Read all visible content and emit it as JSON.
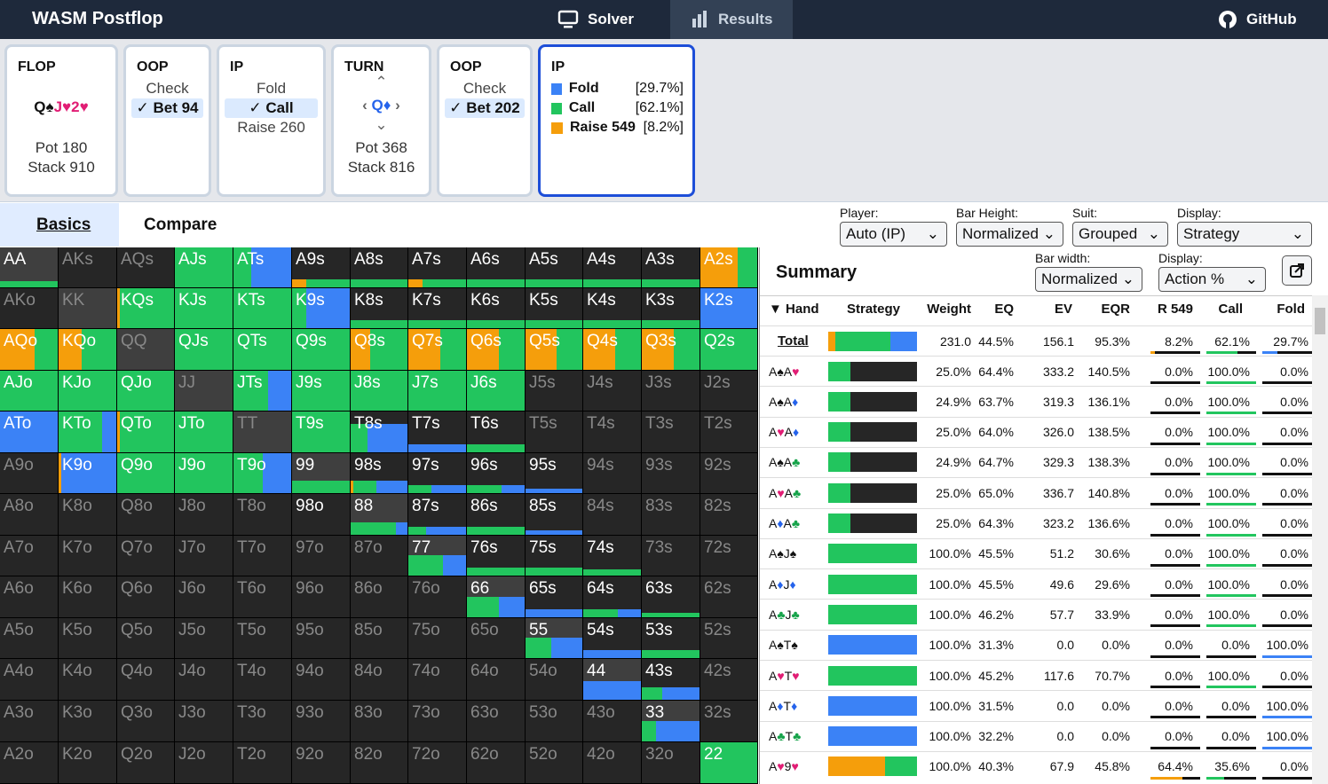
{
  "app": {
    "title": "WASM Postflop",
    "nav_solver": "Solver",
    "nav_results": "Results",
    "nav_github": "GitHub"
  },
  "nodes": {
    "flop": {
      "title": "FLOP",
      "pot": "Pot 180",
      "stack": "Stack 910"
    },
    "oop1": {
      "title": "OOP",
      "a1": "Check",
      "a2": "✓ Bet 94"
    },
    "ip1": {
      "title": "IP",
      "a1": "Fold",
      "a2": "✓ Call",
      "a3": "Raise 260"
    },
    "turn": {
      "title": "TURN",
      "pot": "Pot 368",
      "stack": "Stack 816"
    },
    "oop2": {
      "title": "OOP",
      "a1": "Check",
      "a2": "✓ Bet 202"
    },
    "ip2": {
      "title": "IP",
      "items": [
        {
          "name": "Fold",
          "pct": "[29.7%]"
        },
        {
          "name": "Call",
          "pct": "[62.1%]"
        },
        {
          "name": "Raise 549",
          "pct": "[8.2%]"
        }
      ]
    }
  },
  "tabs": {
    "basics": "Basics",
    "compare": "Compare"
  },
  "controls": {
    "player_label": "Player:",
    "player": "Auto (IP)",
    "barh_label": "Bar Height:",
    "barh": "Normalized",
    "suit_label": "Suit:",
    "suit": "Grouped",
    "display_label": "Display:",
    "display": "Strategy",
    "barw_label": "Bar width:",
    "barw": "Normalized",
    "display2_label": "Display:",
    "display2": "Action %"
  },
  "summary": {
    "title": "Summary",
    "headers": {
      "hand": "▼ Hand",
      "strategy": "Strategy",
      "weight": "Weight",
      "eq": "EQ",
      "ev": "EV",
      "eqr": "EQR",
      "r549": "R 549",
      "call": "Call",
      "fold": "Fold"
    },
    "total": {
      "hand": "Total",
      "weight": "231.0",
      "eq": "44.5%",
      "ev": "156.1",
      "eqr": "95.3%",
      "r549": "8.2%",
      "call": "62.1%",
      "fold": "29.7%",
      "strat": [
        8.2,
        62.1,
        29.7
      ]
    },
    "rows": [
      {
        "r1": "A",
        "s1": "♠",
        "r2": "A",
        "s2": "♥",
        "weight": "25.0%",
        "eq": "64.4%",
        "ev": "333.2",
        "eqr": "140.5%",
        "r549": "0.0%",
        "call": "100.0%",
        "fold": "0.0%",
        "strat": [
          0,
          100,
          0
        ],
        "w": 25
      },
      {
        "r1": "A",
        "s1": "♠",
        "r2": "A",
        "s2": "♦",
        "weight": "24.9%",
        "eq": "63.7%",
        "ev": "319.3",
        "eqr": "136.1%",
        "r549": "0.0%",
        "call": "100.0%",
        "fold": "0.0%",
        "strat": [
          0,
          100,
          0
        ],
        "w": 25
      },
      {
        "r1": "A",
        "s1": "♥",
        "r2": "A",
        "s2": "♦",
        "weight": "25.0%",
        "eq": "64.0%",
        "ev": "326.0",
        "eqr": "138.5%",
        "r549": "0.0%",
        "call": "100.0%",
        "fold": "0.0%",
        "strat": [
          0,
          100,
          0
        ],
        "w": 25
      },
      {
        "r1": "A",
        "s1": "♠",
        "r2": "A",
        "s2": "♣",
        "weight": "24.9%",
        "eq": "64.7%",
        "ev": "329.3",
        "eqr": "138.3%",
        "r549": "0.0%",
        "call": "100.0%",
        "fold": "0.0%",
        "strat": [
          0,
          100,
          0
        ],
        "w": 25
      },
      {
        "r1": "A",
        "s1": "♥",
        "r2": "A",
        "s2": "♣",
        "weight": "25.0%",
        "eq": "65.0%",
        "ev": "336.7",
        "eqr": "140.8%",
        "r549": "0.0%",
        "call": "100.0%",
        "fold": "0.0%",
        "strat": [
          0,
          100,
          0
        ],
        "w": 25
      },
      {
        "r1": "A",
        "s1": "♦",
        "r2": "A",
        "s2": "♣",
        "weight": "25.0%",
        "eq": "64.3%",
        "ev": "323.2",
        "eqr": "136.6%",
        "r549": "0.0%",
        "call": "100.0%",
        "fold": "0.0%",
        "strat": [
          0,
          100,
          0
        ],
        "w": 25
      },
      {
        "r1": "A",
        "s1": "♠",
        "r2": "J",
        "s2": "♠",
        "weight": "100.0%",
        "eq": "45.5%",
        "ev": "51.2",
        "eqr": "30.6%",
        "r549": "0.0%",
        "call": "100.0%",
        "fold": "0.0%",
        "strat": [
          0,
          100,
          0
        ],
        "w": 100
      },
      {
        "r1": "A",
        "s1": "♦",
        "r2": "J",
        "s2": "♦",
        "weight": "100.0%",
        "eq": "45.5%",
        "ev": "49.6",
        "eqr": "29.6%",
        "r549": "0.0%",
        "call": "100.0%",
        "fold": "0.0%",
        "strat": [
          0,
          100,
          0
        ],
        "w": 100
      },
      {
        "r1": "A",
        "s1": "♣",
        "r2": "J",
        "s2": "♣",
        "weight": "100.0%",
        "eq": "46.2%",
        "ev": "57.7",
        "eqr": "33.9%",
        "r549": "0.0%",
        "call": "100.0%",
        "fold": "0.0%",
        "strat": [
          0,
          100,
          0
        ],
        "w": 100
      },
      {
        "r1": "A",
        "s1": "♠",
        "r2": "T",
        "s2": "♠",
        "weight": "100.0%",
        "eq": "31.3%",
        "ev": "0.0",
        "eqr": "0.0%",
        "r549": "0.0%",
        "call": "0.0%",
        "fold": "100.0%",
        "strat": [
          0,
          0,
          100
        ],
        "w": 100
      },
      {
        "r1": "A",
        "s1": "♥",
        "r2": "T",
        "s2": "♥",
        "weight": "100.0%",
        "eq": "45.2%",
        "ev": "117.6",
        "eqr": "70.7%",
        "r549": "0.0%",
        "call": "100.0%",
        "fold": "0.0%",
        "strat": [
          0,
          100,
          0
        ],
        "w": 100
      },
      {
        "r1": "A",
        "s1": "♦",
        "r2": "T",
        "s2": "♦",
        "weight": "100.0%",
        "eq": "31.5%",
        "ev": "0.0",
        "eqr": "0.0%",
        "r549": "0.0%",
        "call": "0.0%",
        "fold": "100.0%",
        "strat": [
          0,
          0,
          100
        ],
        "w": 100
      },
      {
        "r1": "A",
        "s1": "♣",
        "r2": "T",
        "s2": "♣",
        "weight": "100.0%",
        "eq": "32.2%",
        "ev": "0.0",
        "eqr": "0.0%",
        "r549": "0.0%",
        "call": "0.0%",
        "fold": "100.0%",
        "strat": [
          0,
          0,
          100
        ],
        "w": 100
      },
      {
        "r1": "A",
        "s1": "♥",
        "r2": "9",
        "s2": "♥",
        "weight": "100.0%",
        "eq": "40.3%",
        "ev": "67.9",
        "eqr": "45.8%",
        "r549": "64.4%",
        "call": "35.6%",
        "fold": "0.0%",
        "strat": [
          64.4,
          35.6,
          0
        ],
        "w": 100
      }
    ]
  },
  "colors": {
    "raise": "#f59e0b",
    "call": "#22c55e",
    "fold": "#3b82f6",
    "empty": "#262626"
  },
  "matrix": {
    "ranks": [
      "A",
      "K",
      "Q",
      "J",
      "T",
      "9",
      "8",
      "7",
      "6",
      "5",
      "4",
      "3",
      "2"
    ],
    "cells": [
      [
        "AA|1|0.15|0,100,0",
        "AKs|0",
        "AQs|0",
        "AJs|1|1|0,100,0",
        "ATs|1|1|0,30,70",
        "A9s|1|0.2|25,75,0",
        "A8s|1|0.2|0,100,0",
        "A7s|1|0.2|25,75,0",
        "A6s|1|0.2|0,100,0",
        "A5s|1|0.2|0,100,0",
        "A4s|1|0.2|0,100,0",
        "A3s|1|0.2|0,100,0",
        "A2s|1|1|65,35,0"
      ],
      [
        "AKo|0",
        "KK|0",
        "KQs|1|1|5,95,0",
        "KJs|1|1|0,100,0",
        "KTs|1|1|0,100,0",
        "K9s|1|1|0,25,75",
        "K8s|1|0.2|0,100,0",
        "K7s|1|0.2|0,100,0",
        "K6s|1|0.2|0,100,0",
        "K5s|1|0.2|0,100,0",
        "K4s|1|0.2|0,100,0",
        "K3s|1|0.2|0,100,0",
        "K2s|1|1|0,0,100"
      ],
      [
        "AQo|1|1|60,40,0",
        "KQo|1|1|40,60,0",
        "QQ|0",
        "QJs|1|1|0,100,0",
        "QTs|1|1|0,100,0",
        "Q9s|1|1|0,100,0",
        "Q8s|1|1|35,65,0",
        "Q7s|1|1|55,45,0",
        "Q6s|1|1|55,45,0",
        "Q5s|1|1|55,45,0",
        "Q4s|1|1|55,45,0",
        "Q3s|1|1|55,45,0",
        "Q2s|1|1|0,100,0"
      ],
      [
        "AJo|1|1|0,100,0",
        "KJo|1|1|0,100,0",
        "QJo|1|1|0,100,0",
        "JJ|0",
        "JTs|1|1|0,60,40",
        "J9s|1|1|0,100,0",
        "J8s|1|1|0,100,0",
        "J7s|1|1|0,100,0",
        "J6s|1|1|0,100,0",
        "J5s|0",
        "J4s|0",
        "J3s|0",
        "J2s|0"
      ],
      [
        "ATo|1|1|0,0,100",
        "KTo|1|1|0,75,25",
        "QTo|1|1|5,95,0",
        "JTo|1|1|0,100,0",
        "TT|0",
        "T9s|1|1|0,100,0",
        "T8s|1|0.7|0,30,70",
        "T7s|1|0.2|0,0,100",
        "T6s|1|0.2|0,100,0",
        "T5s|0",
        "T4s|0",
        "T3s|0",
        "T2s|0"
      ],
      [
        "A9o|0",
        "K9o|1|1|5,0,95",
        "Q9o|1|1|0,100,0",
        "J9o|1|1|0,100,0",
        "T9o|1|1|0,50,50",
        "99|1|0.3|0,100,0",
        "98s|1|0.3|5,40,55",
        "97s|1|0.2|0,40,60",
        "96s|1|0.2|0,60,40",
        "95s|1|0.1|0,0,100",
        "94s|0",
        "93s|0",
        "92s|0"
      ],
      [
        "A8o|0",
        "K8o|0",
        "Q8o|0",
        "J8o|0",
        "T8o|0",
        "98o|1|0|0,0,0",
        "88|1|0.3|0,80,20",
        "87s|1|0.2|0,30,70",
        "86s|1|0.2|0,100,0",
        "85s|1|0.1|0,0,100",
        "84s|0",
        "83s|0",
        "82s|0"
      ],
      [
        "A7o|0",
        "K7o|0",
        "Q7o|0",
        "J7o|0",
        "T7o|0",
        "97o|0",
        "87o|0",
        "77|1|0.5|0,60,40",
        "76s|1|0.2|0,100,0",
        "75s|1|0.2|0,100,0",
        "74s|1|0.15|0,100,0",
        "73s|0",
        "72s|0"
      ],
      [
        "A6o|0",
        "K6o|0",
        "Q6o|0",
        "J6o|0",
        "T6o|0",
        "96o|0",
        "86o|0",
        "76o|0",
        "66|1|0.5|0,55,45",
        "65s|1|0.2|0,0,100",
        "64s|1|0.2|0,60,40",
        "63s|1|0.1|0,100,0",
        "62s|0"
      ],
      [
        "A5o|0",
        "K5o|0",
        "Q5o|0",
        "J5o|0",
        "T5o|0",
        "95o|0",
        "85o|0",
        "75o|0",
        "65o|0",
        "55|1|0.5|0,45,55",
        "54s|1|0.2|0,0,100",
        "53s|1|0.2|0,100,0",
        "52s|0"
      ],
      [
        "A4o|0",
        "K4o|0",
        "Q4o|0",
        "J4o|0",
        "T4o|0",
        "94o|0",
        "84o|0",
        "74o|0",
        "64o|0",
        "54o|0",
        "44|1|0.45|0,0,100",
        "43s|1|0.3|0,35,65",
        "42s|0"
      ],
      [
        "A3o|0",
        "K3o|0",
        "Q3o|0",
        "J3o|0",
        "T3o|0",
        "93o|0",
        "83o|0",
        "73o|0",
        "63o|0",
        "53o|0",
        "43o|0",
        "33|1|0.5|0,25,75",
        "32s|0"
      ],
      [
        "A2o|0",
        "K2o|0",
        "Q2o|0",
        "J2o|0",
        "T2o|0",
        "92o|0",
        "82o|0",
        "72o|0",
        "62o|0",
        "52o|0",
        "42o|0",
        "32o|0",
        "22|1|1|0,100,0"
      ]
    ]
  }
}
